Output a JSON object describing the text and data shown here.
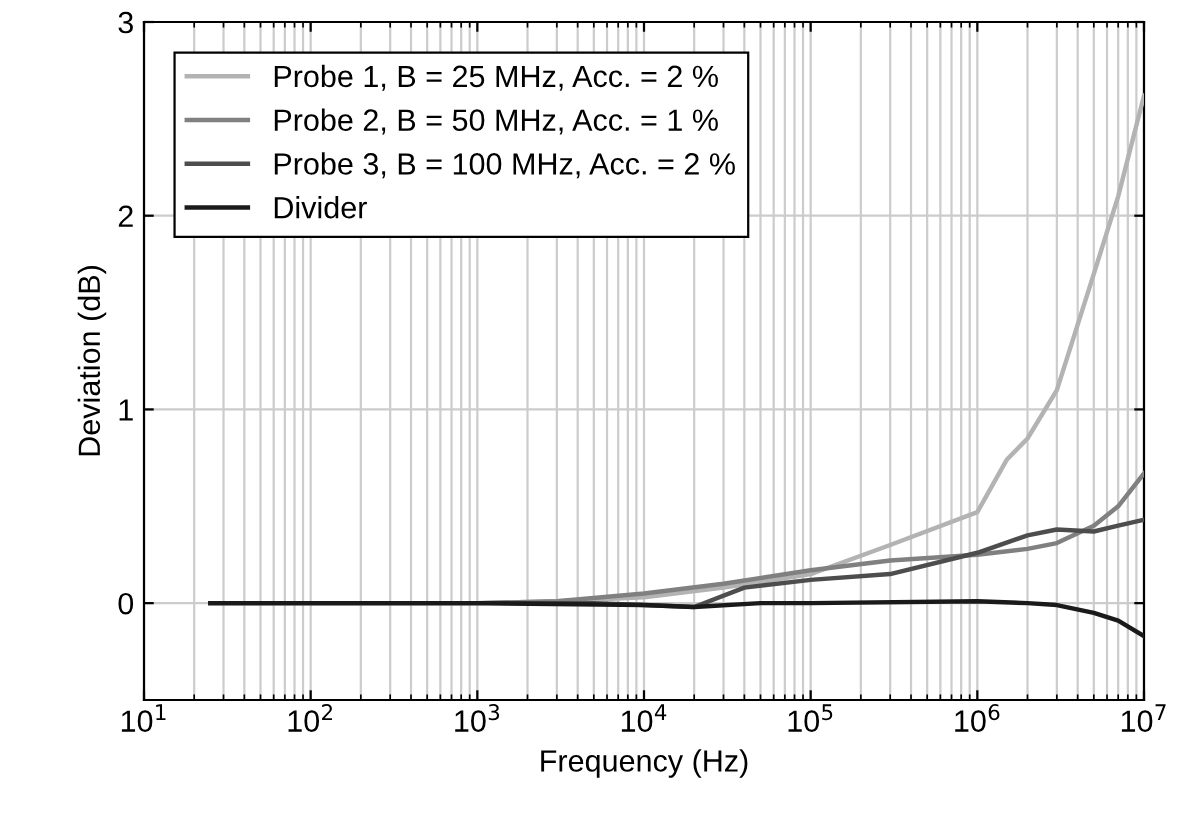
{
  "chart_data": {
    "type": "line",
    "xlabel": "Frequency (Hz)",
    "ylabel": "Deviation (dB)",
    "log": "x",
    "grid": true,
    "legend": "top left",
    "line_style": "solid",
    "marker": "none",
    "xlim": [
      10,
      10000000
    ],
    "xticks": [
      {
        "value": 10,
        "label": "10$^{1}$"
      },
      {
        "value": 100,
        "label": "10$^{2}$"
      },
      {
        "value": 1000,
        "label": "10$^{3}$"
      },
      {
        "value": 10000,
        "label": "10$^{4}$"
      },
      {
        "value": 100000,
        "label": "10$^{5}$"
      },
      {
        "value": 1000000,
        "label": "10$^{6}$"
      },
      {
        "value": 10000000,
        "label": "10$^{7}$"
      }
    ],
    "ylim": [
      -0.5,
      3
    ],
    "yticks": [
      0,
      1,
      2,
      3
    ],
    "series": [
      {
        "name": "Probe 1, B = 25 MHz, Acc. = 2 %",
        "color": "#b3b3b3",
        "x": [
          25,
          100,
          1000,
          3000,
          10000,
          30000,
          100000,
          300000,
          1000000,
          1500000,
          2000000,
          3000000,
          5000000,
          7000000,
          10000000
        ],
        "values": [
          0,
          0,
          0,
          0.01,
          0.03,
          0.08,
          0.15,
          0.3,
          0.47,
          0.74,
          0.85,
          1.1,
          1.7,
          2.1,
          2.62
        ]
      },
      {
        "name": "Probe 2, B = 50 MHz, Acc. = 1 %",
        "color": "#808080",
        "x": [
          25,
          100,
          1000,
          3000,
          10000,
          30000,
          100000,
          300000,
          1000000,
          2000000,
          3000000,
          5000000,
          7000000,
          10000000
        ],
        "values": [
          0,
          0,
          0,
          0.01,
          0.05,
          0.1,
          0.17,
          0.22,
          0.25,
          0.28,
          0.31,
          0.4,
          0.5,
          0.67
        ]
      },
      {
        "name": "Probe 3, B = 100 MHz, Acc. = 2 %",
        "color": "#4d4d4d",
        "x": [
          25,
          100,
          1000,
          5000,
          10000,
          20000,
          40000,
          100000,
          300000,
          1000000,
          2000000,
          3000000,
          5000000,
          7000000,
          10000000
        ],
        "values": [
          0,
          0,
          0,
          0,
          -0.01,
          -0.02,
          0.08,
          0.12,
          0.15,
          0.26,
          0.35,
          0.38,
          0.37,
          0.4,
          0.43
        ]
      },
      {
        "name": "Divider",
        "color": "#1a1a1a",
        "x": [
          25,
          100,
          1000,
          10000,
          20000,
          50000,
          100000,
          1000000,
          2000000,
          3000000,
          5000000,
          7000000,
          10000000
        ],
        "values": [
          0,
          0,
          0,
          -0.01,
          -0.02,
          0,
          0,
          0.01,
          0,
          -0.01,
          -0.05,
          -0.09,
          -0.17
        ]
      }
    ]
  }
}
